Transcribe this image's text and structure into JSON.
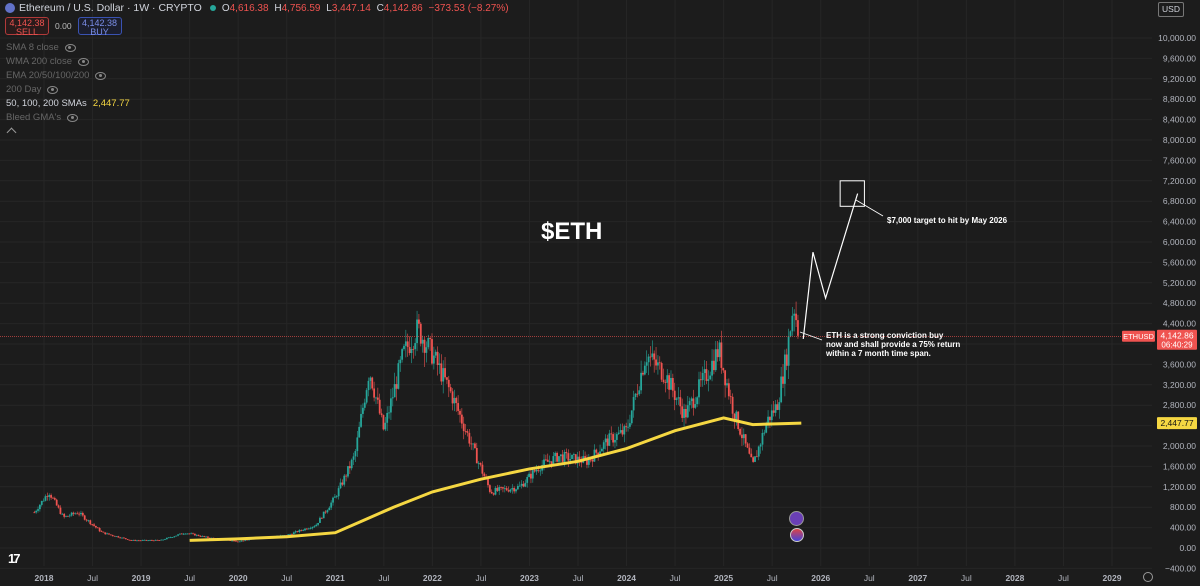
{
  "header": {
    "symbol_title": "Ethereum / U.S. Dollar · 1W · CRYPTO",
    "ohlc": [
      {
        "key": "O",
        "value": "4,616.38"
      },
      {
        "key": "H",
        "value": "4,756.59"
      },
      {
        "key": "L",
        "value": "3,447.14"
      },
      {
        "key": "C",
        "value": "4,142.86"
      },
      {
        "key": "",
        "value": "−373.53 (−8.27%)"
      }
    ]
  },
  "trade": {
    "sell_price": "4,142.38",
    "sell_label": "SELL",
    "spread": "0.00",
    "buy_price": "4,142.38",
    "buy_label": "BUY"
  },
  "indicators": [
    {
      "label": "SMA 8 close",
      "active": false
    },
    {
      "label": "WMA 200 close",
      "active": false
    },
    {
      "label": "EMA 20/50/100/200",
      "active": false
    },
    {
      "label": "200 Day",
      "active": false
    },
    {
      "label": "50, 100, 200 SMAs",
      "active": true,
      "value": "2,447.77"
    },
    {
      "label": "Bleed GMA's",
      "active": false
    }
  ],
  "currency": "USD",
  "chart_title": "$ETH",
  "annotations": {
    "target": "$7,000 target to hit by May 2026",
    "thesis": [
      "ETH is a strong conviction buy",
      "now and shall provide a 75% return",
      "within a 7 month time span."
    ]
  },
  "price_axis": {
    "ticks": [
      "10,000.00",
      "9,600.00",
      "9,200.00",
      "8,800.00",
      "8,400.00",
      "8,000.00",
      "7,600.00",
      "7,200.00",
      "6,800.00",
      "6,400.00",
      "6,000.00",
      "5,600.00",
      "5,200.00",
      "4,800.00",
      "4,400.00",
      "4,000.00",
      "3,600.00",
      "3,200.00",
      "2,800.00",
      "2,400.00",
      "2,000.00",
      "1,600.00",
      "1,200.00",
      "800.00",
      "400.00",
      "0.00",
      "−400.00"
    ],
    "tick_values": [
      10000,
      9600,
      9200,
      8800,
      8400,
      8000,
      7600,
      7200,
      6800,
      6400,
      6000,
      5600,
      5200,
      4800,
      4400,
      4000,
      3600,
      3200,
      2800,
      2400,
      2000,
      1600,
      1200,
      800,
      400,
      0,
      -400
    ],
    "last_price_symbol": "ETHUSD",
    "last_price": "4,142.86",
    "countdown": "06:40:29",
    "sma_label": "2,447.77"
  },
  "time_axis": {
    "labels": [
      "2018",
      "Jul",
      "2019",
      "Jul",
      "2020",
      "Jul",
      "2021",
      "Jul",
      "2022",
      "Jul",
      "2023",
      "Jul",
      "2024",
      "Jul",
      "2025",
      "Jul",
      "2026",
      "Jul",
      "2027",
      "Jul",
      "2028",
      "Jul",
      "2029"
    ],
    "label_years": [
      2018,
      2018.5,
      2019,
      2019.5,
      2020,
      2020.5,
      2021,
      2021.5,
      2022,
      2022.5,
      2023,
      2023.5,
      2024,
      2024.5,
      2025,
      2025.5,
      2026,
      2026.5,
      2027,
      2027.5,
      2028,
      2028.5,
      2029
    ]
  },
  "colors": {
    "background": "#1c1c1c",
    "up": "#26a69a",
    "down": "#ef5350",
    "sma": "#f5d742",
    "last_price": "#ef5350",
    "projection": "#ffffff"
  },
  "chart_data": {
    "type": "line",
    "series": [
      {
        "name": "ETHUSD",
        "x": [
          2017.9,
          2018.05,
          2018.2,
          2018.35,
          2018.6,
          2018.9,
          2019.2,
          2019.45,
          2019.7,
          2020.0,
          2020.2,
          2020.5,
          2020.8,
          2021.0,
          2021.2,
          2021.35,
          2021.5,
          2021.7,
          2021.85,
          2022.0,
          2022.2,
          2022.45,
          2022.6,
          2022.9,
          2023.1,
          2023.3,
          2023.6,
          2023.8,
          2024.0,
          2024.2,
          2024.4,
          2024.6,
          2024.85,
          2024.95,
          2025.1,
          2025.3,
          2025.45,
          2025.55,
          2025.65,
          2025.72,
          2025.78
        ],
        "y": [
          700,
          1100,
          600,
          700,
          300,
          150,
          150,
          300,
          200,
          130,
          200,
          250,
          450,
          1000,
          1800,
          3500,
          2300,
          3800,
          4300,
          3800,
          3000,
          1800,
          1100,
          1200,
          1600,
          1800,
          1700,
          2100,
          2300,
          3800,
          3400,
          2600,
          3500,
          3900,
          2700,
          1600,
          2500,
          2800,
          3800,
          4800,
          4142
        ]
      },
      {
        "name": "50, 100, 200 SMAs",
        "x": [
          2019.5,
          2020.0,
          2020.5,
          2021.0,
          2021.3,
          2021.6,
          2022.0,
          2022.5,
          2023.0,
          2023.5,
          2024.0,
          2024.5,
          2025.0,
          2025.3,
          2025.8
        ],
        "y": [
          150,
          180,
          220,
          300,
          550,
          800,
          1100,
          1350,
          1550,
          1700,
          1950,
          2300,
          2550,
          2420,
          2448
        ]
      },
      {
        "name": "Projection",
        "x": [
          2025.82,
          2025.92,
          2026.05,
          2026.38
        ],
        "y": [
          4100,
          5800,
          4900,
          6950
        ]
      }
    ],
    "target_box": {
      "x0": 2026.2,
      "x1": 2026.45,
      "y0": 6700,
      "y1": 7200
    },
    "ylim": [
      -400,
      10400
    ],
    "xlim": [
      2017.6,
      2029.5
    ]
  }
}
